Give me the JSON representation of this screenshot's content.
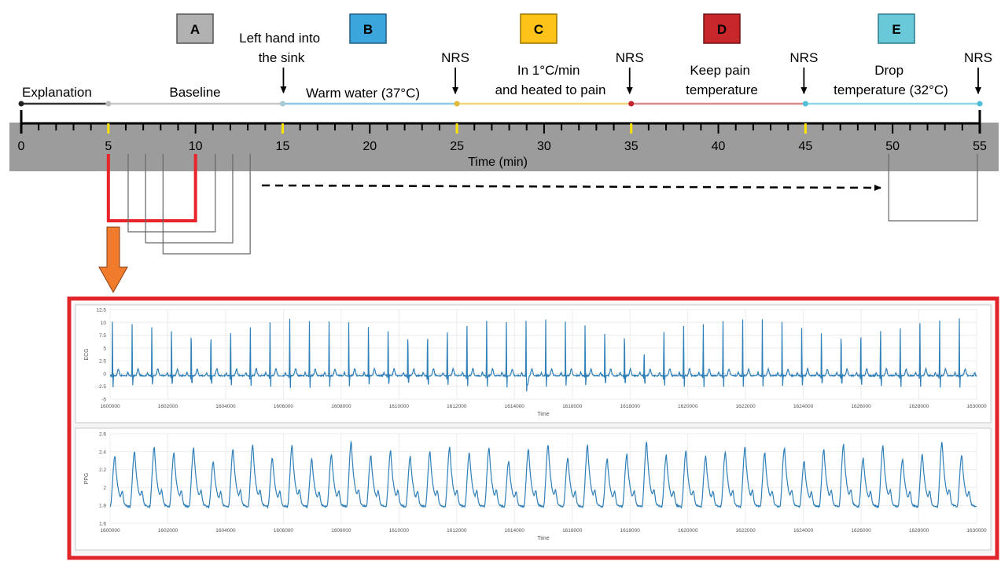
{
  "protocol": {
    "phases": [
      {
        "id": "A",
        "label": "",
        "start": 0,
        "end": 15,
        "color": "#b5b5b5",
        "box_fill": "#b1b1b1",
        "box_stroke": "#555555"
      },
      {
        "id": "B",
        "label": "Warm water (37°C)",
        "start": 15,
        "end": 25,
        "color": "#8ec8e6",
        "box_fill": "#3aa6dc",
        "box_stroke": "#1f5f83"
      },
      {
        "id": "C",
        "label": "In 1°C/min and heated to pain",
        "start": 25,
        "end": 35,
        "color": "#f2d77a",
        "box_fill": "#fdc318",
        "box_stroke": "#9a7400"
      },
      {
        "id": "D",
        "label": "Keep pain temperature",
        "start": 35,
        "end": 45,
        "color": "#d98c8c",
        "box_fill": "#c7262b",
        "box_stroke": "#6d1013"
      },
      {
        "id": "E",
        "label": "Drop temperature (32°C)",
        "start": 45,
        "end": 55,
        "color": "#8fd7e4",
        "box_fill": "#69c9d9",
        "box_stroke": "#2a7d8c"
      }
    ],
    "segments": [
      {
        "label": "Explanation",
        "start": 0,
        "end": 5,
        "color": "#333333"
      },
      {
        "label": "Baseline",
        "start": 5,
        "end": 15,
        "color": "#c8c8c8"
      }
    ],
    "event_label": "Left hand into the sink",
    "event_time": 15,
    "nrs_label": "NRS",
    "nrs_times": [
      25,
      35,
      45,
      55
    ],
    "markers": [
      {
        "t": 0,
        "color": "#222222"
      },
      {
        "t": 5,
        "color": "#bbbbbb"
      },
      {
        "t": 15,
        "color": "#a9c9d6"
      },
      {
        "t": 25,
        "color": "#e2b93b"
      },
      {
        "t": 35,
        "color": "#c0262b"
      },
      {
        "t": 45,
        "color": "#4fbfd6"
      },
      {
        "t": 55,
        "color": "#4fbfd6"
      }
    ],
    "axis": {
      "label": "Time (min)",
      "min": 0,
      "max": 55,
      "ticks": [
        0,
        5,
        10,
        15,
        20,
        25,
        30,
        35,
        40,
        45,
        50,
        55
      ],
      "highlight_ticks": [
        5,
        15,
        25,
        35,
        45,
        55
      ],
      "band_color": "#9a9a9a",
      "highlight_color": "#ffe400"
    },
    "windows": {
      "starts": [
        5,
        6,
        7,
        8
      ],
      "width": 5,
      "active_color": "#e8232a",
      "color": "#666666",
      "last_window": [
        50,
        55
      ]
    }
  },
  "zoom_arrow_color": "#f07b2c",
  "panel_border_color": "#e0262b",
  "signals": [
    {
      "name": "ECG",
      "ylabel": "ECG",
      "xlabel": "Time",
      "x_min": 1600000,
      "x_max": 1630000,
      "x_ticks": [
        1600000,
        1602000,
        1604000,
        1606000,
        1608000,
        1610000,
        1612000,
        1614000,
        1616000,
        1618000,
        1620000,
        1622000,
        1624000,
        1626000,
        1628000,
        1630000
      ],
      "y_min": -5,
      "y_max": 12.5,
      "y_ticks": [
        -5,
        -2.5,
        0,
        2.5,
        5,
        7.5,
        10,
        12.5
      ],
      "y_tick_labels": [
        "-5",
        "-2.5",
        "0",
        "2.5",
        "5",
        "7.5",
        "10",
        "12.5"
      ],
      "beats": 44,
      "line_color": "#2f7fb8"
    },
    {
      "name": "PPG",
      "ylabel": "PPG",
      "xlabel": "Time",
      "x_min": 1600000,
      "x_max": 1630000,
      "x_ticks": [
        1600000,
        1602000,
        1604000,
        1606000,
        1608000,
        1610000,
        1612000,
        1614000,
        1616000,
        1618000,
        1620000,
        1622000,
        1624000,
        1626000,
        1628000,
        1630000
      ],
      "y_min": 1.6,
      "y_max": 2.6,
      "y_ticks": [
        1.6,
        1.8,
        2,
        2.2,
        2.4,
        2.6
      ],
      "y_tick_labels": [
        "1.6",
        "1.8",
        "2",
        "2.2",
        "2.4",
        "2.6"
      ],
      "beats": 44,
      "line_color": "#2f7fb8"
    }
  ]
}
